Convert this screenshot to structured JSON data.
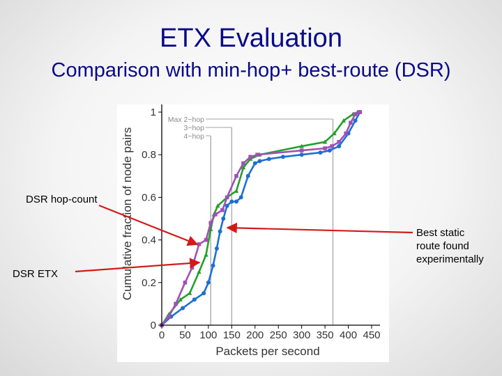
{
  "slide": {
    "title": "ETX Evaluation",
    "subtitle": "Comparison with min-hop+ best-route (DSR)"
  },
  "callouts": {
    "dsr_hopcount": "DSR hop-count",
    "dsr_etx": "DSR ETX",
    "best_static": [
      "Best static",
      "route found",
      "experimentally"
    ]
  },
  "colors": {
    "title": "#0a0a8a",
    "arrow": "#d21a1a",
    "best_static": "#1e6fd0",
    "dsr_etx": "#22a02a",
    "dsr_hopcount": "#a050b4",
    "reference_lines": "#b4b4b4"
  },
  "chart_data": {
    "type": "line",
    "title": "",
    "xlabel": "Packets per second",
    "ylabel": "Cumulative fraction of node pairs",
    "xlim": [
      0,
      450
    ],
    "ylim": [
      0,
      1
    ],
    "xticks": [
      "0",
      "50",
      "100",
      "150",
      "200",
      "250",
      "300",
      "350",
      "400",
      "450"
    ],
    "yticks": [
      "0",
      "0.2",
      "0.4",
      "0.6",
      "0.8",
      "1"
    ],
    "grid": false,
    "reference_lines": [
      {
        "label": "Max 2−hop",
        "x": 367
      },
      {
        "label": "3−hop",
        "x": 150
      },
      {
        "label": "4−hop",
        "x": 105
      }
    ],
    "series": [
      {
        "key": "best_static",
        "x": [
          0,
          20,
          45,
          70,
          90,
          100,
          110,
          118,
          125,
          132,
          140,
          150,
          160,
          170,
          185,
          200,
          210,
          230,
          260,
          300,
          340,
          360,
          380,
          400,
          415,
          425
        ],
        "y": [
          0,
          0.04,
          0.08,
          0.12,
          0.15,
          0.2,
          0.28,
          0.36,
          0.44,
          0.5,
          0.56,
          0.58,
          0.58,
          0.6,
          0.7,
          0.76,
          0.77,
          0.78,
          0.79,
          0.8,
          0.81,
          0.82,
          0.84,
          0.9,
          0.96,
          1.0
        ]
      },
      {
        "key": "dsr_etx",
        "x": [
          0,
          15,
          40,
          60,
          80,
          95,
          105,
          112,
          120,
          140,
          160,
          175,
          190,
          210,
          300,
          350,
          370,
          390,
          410,
          420
        ],
        "y": [
          0,
          0.05,
          0.12,
          0.15,
          0.25,
          0.33,
          0.45,
          0.52,
          0.56,
          0.6,
          0.63,
          0.74,
          0.78,
          0.8,
          0.84,
          0.86,
          0.9,
          0.96,
          0.99,
          1.0
        ]
      },
      {
        "key": "dsr_hopcount",
        "x": [
          0,
          15,
          30,
          50,
          65,
          80,
          95,
          105,
          115,
          130,
          140,
          160,
          175,
          190,
          205,
          300,
          350,
          365,
          380,
          395,
          405,
          415,
          425
        ],
        "y": [
          0,
          0.04,
          0.1,
          0.2,
          0.27,
          0.38,
          0.4,
          0.48,
          0.52,
          0.54,
          0.6,
          0.7,
          0.76,
          0.79,
          0.8,
          0.82,
          0.83,
          0.84,
          0.86,
          0.9,
          0.95,
          0.99,
          1.0
        ]
      }
    ]
  }
}
